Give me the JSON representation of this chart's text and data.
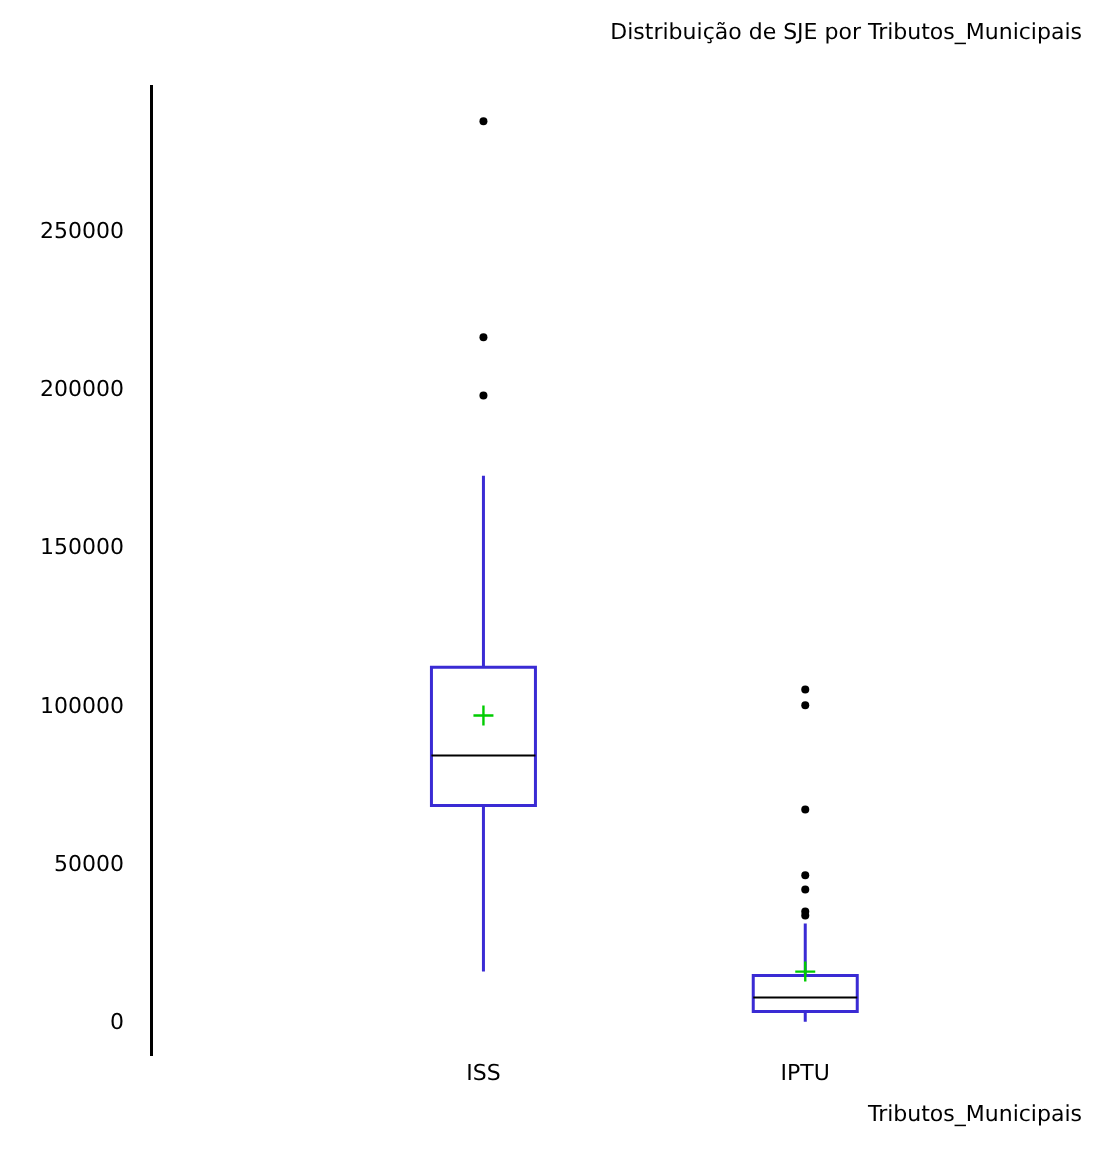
{
  "chart_data": {
    "type": "box",
    "title": "Distribuição de SJE por Tributos_Municipais",
    "xlabel": "Tributos_Municipais",
    "categories": [
      "ISS",
      "IPTU"
    ],
    "color": "#3a2bd4",
    "boxes": [
      {
        "low": 16400,
        "q1": 68900,
        "median": 84700,
        "q3": 112500,
        "high": 173000,
        "mean": 97300,
        "outliers": [
          198400,
          216800,
          285000
        ]
      },
      {
        "low": 600,
        "q1": 3800,
        "median": 8200,
        "q3": 15200,
        "high": 31600,
        "mean": 16400,
        "outliers": [
          34100,
          35400,
          42300,
          46800,
          67600,
          100500,
          105500
        ]
      }
    ],
    "ylim": [
      -10000,
      296000
    ],
    "yticks": [
      0,
      50000,
      100000,
      150000,
      200000,
      250000
    ]
  }
}
